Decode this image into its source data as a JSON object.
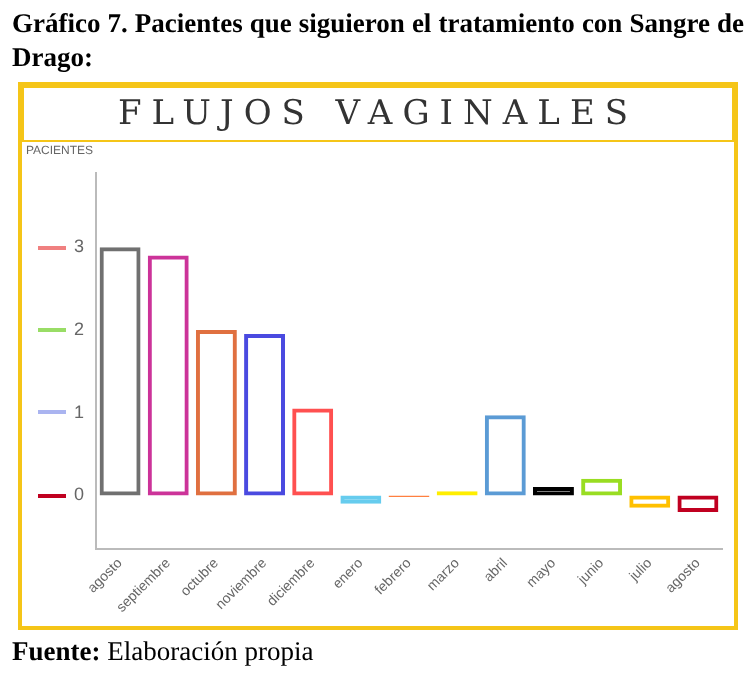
{
  "chart_data": {
    "type": "bar",
    "title": "FLUJOS VAGINALES",
    "ylabel": "PACIENTES",
    "annotations": [
      "Gráfico 7. Pacientes que siguieron el tratamiento con Sangre de Drago:",
      "Fuente: Elaboración propia"
    ],
    "categories": [
      "agosto",
      "septiembre",
      "octubre",
      "noviembre",
      "diciembre",
      "enero",
      "febrero",
      "marzo",
      "abril",
      "mayo",
      "junio",
      "julio",
      "agosto"
    ],
    "values": [
      3,
      2.9,
      2,
      1.95,
      1.05,
      -0.1,
      -0.02,
      0.05,
      0.97,
      0.1,
      0.2,
      -0.15,
      -0.2
    ],
    "colors": [
      "#707070",
      "#cc3399",
      "#e07040",
      "#4a4ae0",
      "#ff5050",
      "#66ccee",
      "#ff8040",
      "#ffee00",
      "#5b9bd5",
      "#000000",
      "#99dd22",
      "#ffc000",
      "#c00020"
    ],
    "ylim": [
      -0.65,
      3.9
    ],
    "yticks": [
      0,
      1,
      2,
      3
    ],
    "grid": false,
    "legend": false
  }
}
